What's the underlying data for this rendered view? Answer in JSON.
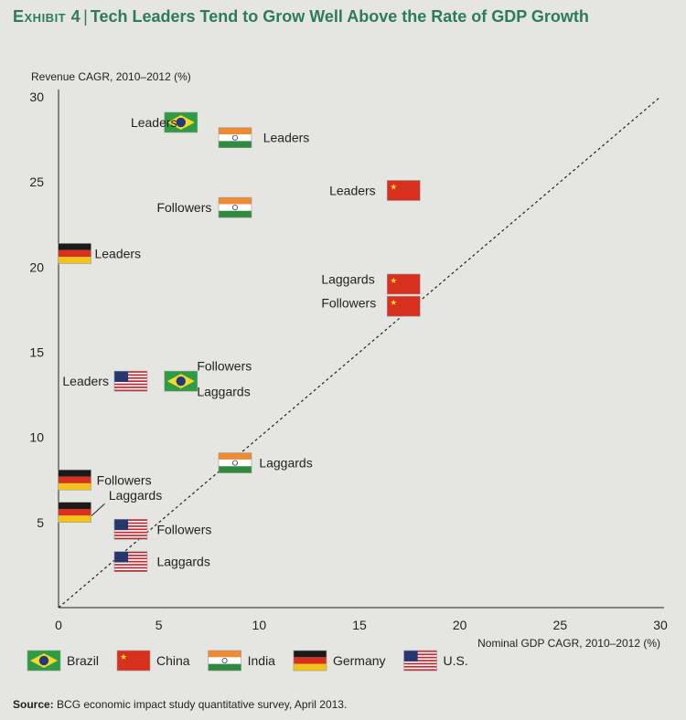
{
  "header": {
    "exhibit": "Exhibit 4",
    "separator": "|",
    "title": "Tech Leaders Tend to Grow Well Above the Rate of GDP Growth"
  },
  "footer": {
    "source_label": "Source:",
    "source_text": "BCG economic impact study quantitative survey, April 2013."
  },
  "chart_data": {
    "type": "scatter",
    "ylabel": "Revenue CAGR, 2010–2012 (%)",
    "xlabel": "Nominal GDP CAGR, 2010–2012 (%)",
    "xlim": [
      0,
      30
    ],
    "ylim": [
      0,
      30
    ],
    "xticks": [
      0,
      5,
      10,
      15,
      20,
      25,
      30
    ],
    "yticks": [
      5,
      10,
      15,
      20,
      25,
      30
    ],
    "reference_line": "y = x (dashed)",
    "countries": [
      {
        "id": "brazil",
        "name": "Brazil"
      },
      {
        "id": "china",
        "name": "China"
      },
      {
        "id": "india",
        "name": "India"
      },
      {
        "id": "germany",
        "name": "Germany"
      },
      {
        "id": "us",
        "name": "U.S."
      }
    ],
    "points": [
      {
        "country": "brazil",
        "group": "Leaders",
        "x": 6.1,
        "y": 28.5
      },
      {
        "country": "brazil",
        "group": "Followers / Laggards",
        "x": 6.1,
        "y": 13.3
      },
      {
        "country": "india",
        "group": "Leaders",
        "x": 8.8,
        "y": 27.6
      },
      {
        "country": "india",
        "group": "Followers",
        "x": 8.8,
        "y": 23.5
      },
      {
        "country": "india",
        "group": "Laggards",
        "x": 8.8,
        "y": 8.5
      },
      {
        "country": "china",
        "group": "Leaders",
        "x": 17.2,
        "y": 24.5
      },
      {
        "country": "china",
        "group": "Laggards",
        "x": 17.2,
        "y": 19.0
      },
      {
        "country": "china",
        "group": "Followers",
        "x": 17.2,
        "y": 17.7
      },
      {
        "country": "germany",
        "group": "Leaders",
        "x": 0.8,
        "y": 20.8
      },
      {
        "country": "germany",
        "group": "Followers",
        "x": 0.8,
        "y": 7.5
      },
      {
        "country": "germany",
        "group": "Laggards",
        "x": 0.8,
        "y": 5.6
      },
      {
        "country": "us",
        "group": "Leaders",
        "x": 3.6,
        "y": 13.3
      },
      {
        "country": "us",
        "group": "Followers",
        "x": 3.6,
        "y": 4.6
      },
      {
        "country": "us",
        "group": "Laggards",
        "x": 3.6,
        "y": 2.7
      }
    ],
    "labels": [
      {
        "text": "Leaders",
        "x": 3.6,
        "y": 28.5
      },
      {
        "text": "Leaders",
        "x": 10.2,
        "y": 27.6
      },
      {
        "text": "Leaders",
        "x": 13.5,
        "y": 24.5
      },
      {
        "text": "Followers",
        "x": 4.9,
        "y": 23.5
      },
      {
        "text": "Leaders",
        "x": 1.8,
        "y": 20.8
      },
      {
        "text": "Laggards",
        "x": 13.1,
        "y": 19.3
      },
      {
        "text": "Followers",
        "x": 13.1,
        "y": 17.9
      },
      {
        "text": "Leaders",
        "x": 0.2,
        "y": 13.3
      },
      {
        "text": "Followers",
        "x": 6.9,
        "y": 14.2
      },
      {
        "text": "Laggards",
        "x": 6.9,
        "y": 12.7
      },
      {
        "text": "Laggards",
        "x": 10.0,
        "y": 8.5
      },
      {
        "text": "Followers",
        "x": 1.9,
        "y": 7.5
      },
      {
        "text": "Laggards",
        "x": 2.5,
        "y": 6.6
      },
      {
        "text": "Followers",
        "x": 4.9,
        "y": 4.6
      },
      {
        "text": "Laggards",
        "x": 4.9,
        "y": 2.7
      }
    ]
  }
}
